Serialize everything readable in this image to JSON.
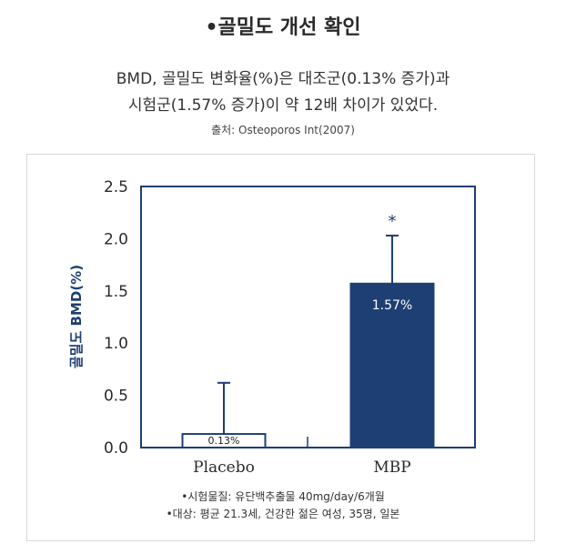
{
  "header": {
    "title": "•골밀도 개선 확인",
    "description_line1": "BMD, 골밀도 변화율(%)은 대조군(0.13% 증가)과",
    "description_line2": "시험군(1.57% 증가)이 약 12배 차이가 있었다.",
    "source": "출처: Osteoporos Int(2007)"
  },
  "chart_data": {
    "type": "bar",
    "categories": [
      "Placebo",
      "MBP"
    ],
    "values": [
      0.13,
      1.57
    ],
    "error_upper": [
      0.62,
      2.03
    ],
    "value_labels": [
      "0.13%",
      "1.57%"
    ],
    "significance_marks": [
      "",
      "*"
    ],
    "bar_colors": [
      "#ffffff",
      "#1d3f73"
    ],
    "ylabel": "골밀도 BMD(%)",
    "ylim": [
      0,
      2.5
    ],
    "yticks": [
      "0.0",
      "0.5",
      "1.0",
      "1.5",
      "2.0",
      "2.5"
    ],
    "ytick_values": [
      0,
      0.5,
      1.0,
      1.5,
      2.0,
      2.5
    ],
    "grid": false
  },
  "notes": {
    "line1": "•시험물질: 유단백추출물 40mg/day/6개월",
    "line2": "•대상: 평균 21.3세, 건강한 젊은 여성, 35명, 일본"
  },
  "colors": {
    "axis": "#1d3f73",
    "accent": "#1d3f73"
  }
}
